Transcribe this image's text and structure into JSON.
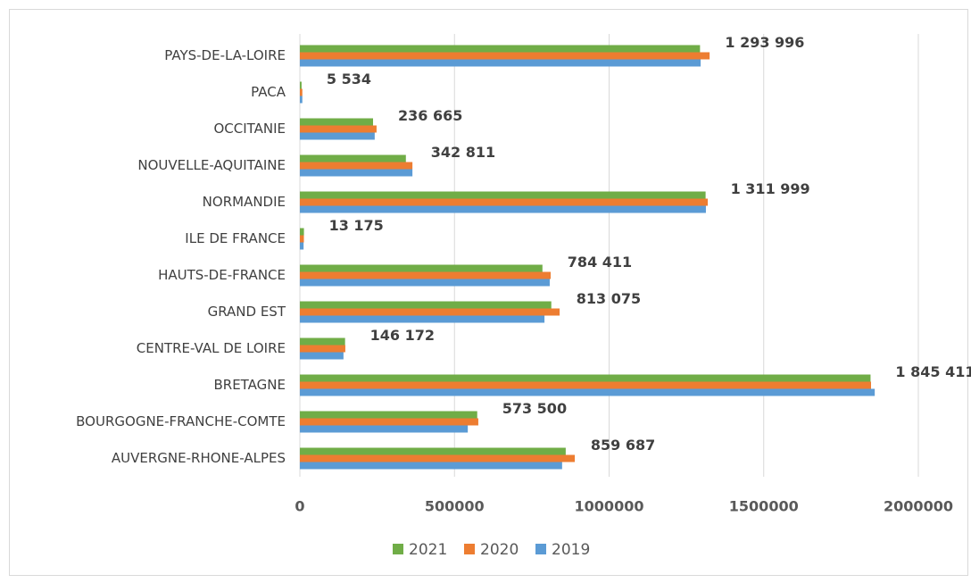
{
  "chart_data": {
    "type": "hbar",
    "categories": [
      "PAYS-DE-LA-LOIRE",
      "PACA",
      "OCCITANIE",
      "NOUVELLE-AQUITAINE",
      "NORMANDIE",
      "ILE DE FRANCE",
      "HAUTS-DE-FRANCE",
      "GRAND EST",
      "CENTRE-VAL DE LOIRE",
      "BRETAGNE",
      "BOURGOGNE-FRANCHE-COMTE",
      "AUVERGNE-RHONE-ALPES"
    ],
    "series": [
      {
        "name": "2021",
        "color": "#70ad47",
        "values": [
          1293996,
          5534,
          236665,
          342811,
          1311999,
          13175,
          784411,
          813075,
          146172,
          1845411,
          573500,
          859687
        ],
        "value_labels": [
          "1 293 996",
          "5 534",
          "236 665",
          "342 811",
          "1 311 999",
          "13 175",
          "784 411",
          "813 075",
          "146 172",
          "1 845 411",
          "573 500",
          "859 687"
        ]
      },
      {
        "name": "2020",
        "color": "#ed7d31",
        "values": [
          1325000,
          8000,
          248000,
          364000,
          1319000,
          13000,
          811000,
          840000,
          147000,
          1847000,
          577000,
          889000
        ]
      },
      {
        "name": "2019",
        "color": "#5b9bd5",
        "values": [
          1296000,
          8000,
          242000,
          364000,
          1313000,
          12000,
          808000,
          791000,
          141000,
          1859000,
          543000,
          848000
        ]
      }
    ],
    "xlim": [
      0,
      2000000
    ],
    "xticks": [
      0,
      500000,
      1000000,
      1500000,
      2000000
    ],
    "grid": true,
    "legend": "bottom"
  }
}
